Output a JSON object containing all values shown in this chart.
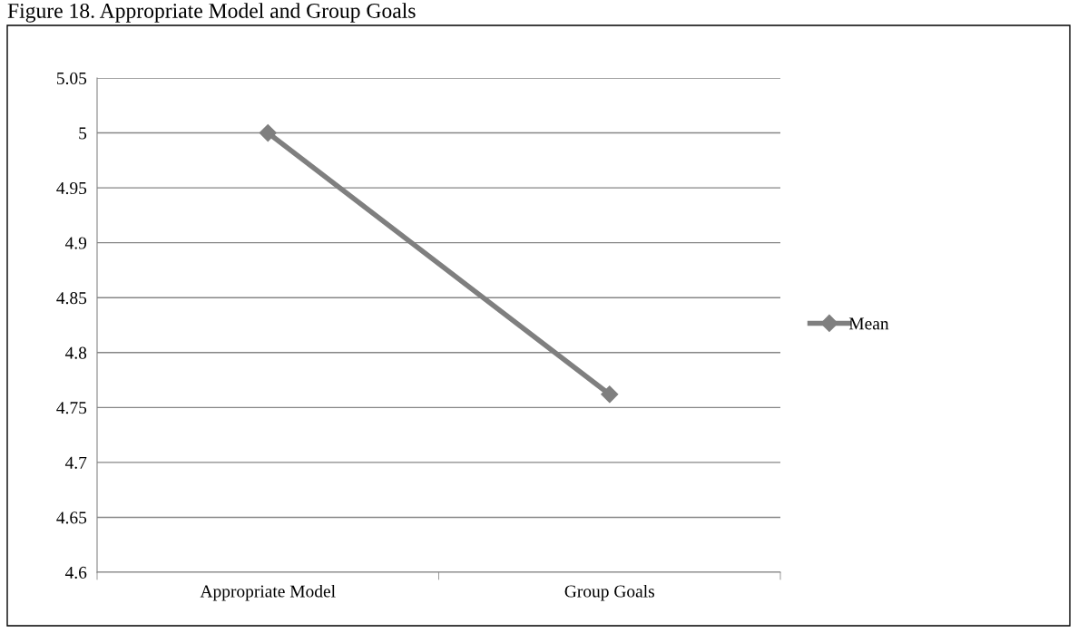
{
  "chart_data": {
    "type": "line",
    "title": "Figure 18. Appropriate Model and Group Goals",
    "categories": [
      "Appropriate Model",
      "Group Goals"
    ],
    "series": [
      {
        "name": "Mean",
        "color": "#7f7f7f",
        "values": [
          5,
          4.762
        ]
      }
    ],
    "ylim": [
      4.6,
      5.05
    ],
    "yticks": [
      4.6,
      4.65,
      4.7,
      4.75,
      4.8,
      4.85,
      4.9,
      4.95,
      5,
      5.05
    ],
    "grid": "y",
    "legend": "right",
    "marker": "diamond",
    "line_style": "solid"
  }
}
